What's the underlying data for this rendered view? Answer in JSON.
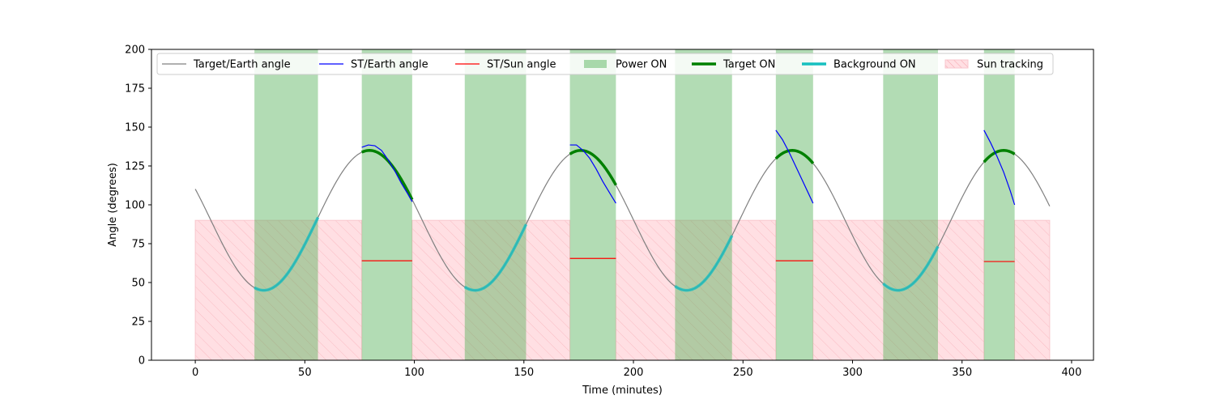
{
  "chart_data": {
    "type": "line",
    "xlabel": "Time (minutes)",
    "ylabel": "Angle (degrees)",
    "xlim": [
      -20,
      410
    ],
    "ylim": [
      0,
      200
    ],
    "xticks": [
      0,
      50,
      100,
      150,
      200,
      250,
      300,
      350,
      400
    ],
    "yticks": [
      0,
      25,
      50,
      75,
      100,
      125,
      150,
      175,
      200
    ],
    "grid": false,
    "legend_placement": "top, single row",
    "legend": [
      {
        "label": "Target/Earth angle",
        "kind": "line",
        "color": "#808080"
      },
      {
        "label": "ST/Earth angle",
        "kind": "line",
        "color": "#0000ff"
      },
      {
        "label": "ST/Sun angle",
        "kind": "line",
        "color": "#ff0000"
      },
      {
        "label": "Power ON",
        "kind": "patch",
        "color": "#4caf50"
      },
      {
        "label": "Target ON",
        "kind": "thick-line",
        "color": "#008000"
      },
      {
        "label": "Background ON",
        "kind": "thick-line",
        "color": "#17bfbf"
      },
      {
        "label": "Sun tracking",
        "kind": "hatch",
        "color": "#ffb6c1"
      }
    ],
    "target_earth_angle": {
      "period_minutes": 96.5,
      "mean_deg": 90,
      "amplitude_deg": 45,
      "peak_times": [
        79.5,
        176,
        272.5,
        369
      ],
      "x_range": [
        0,
        390
      ]
    },
    "power_on_intervals": [
      [
        27,
        56
      ],
      [
        76,
        99
      ],
      [
        123,
        151
      ],
      [
        171,
        192
      ],
      [
        219,
        245
      ],
      [
        265,
        282
      ],
      [
        314,
        339
      ],
      [
        360,
        374
      ]
    ],
    "sun_tracking_intervals": [
      [
        0,
        76
      ],
      [
        99,
        171
      ],
      [
        192,
        265
      ],
      [
        282,
        360
      ],
      [
        374,
        390
      ]
    ],
    "sun_tracking_level": 90,
    "target_on_intervals": [
      [
        76,
        99
      ],
      [
        171,
        192
      ],
      [
        265,
        282
      ],
      [
        360,
        374
      ]
    ],
    "background_on_intervals": [
      [
        27,
        56
      ],
      [
        123,
        151
      ],
      [
        219,
        245
      ],
      [
        314,
        339
      ]
    ],
    "st_earth_angle": [
      {
        "x": [
          76,
          79,
          82,
          85,
          88,
          91,
          94,
          97,
          99
        ],
        "y": [
          137,
          138.5,
          138,
          135,
          129,
          122,
          114,
          107,
          102
        ]
      },
      {
        "x": [
          171,
          174,
          177,
          180,
          183,
          186,
          189,
          192
        ],
        "y": [
          138.5,
          138.5,
          135,
          130,
          123,
          115,
          108,
          101
        ]
      },
      {
        "x": [
          265,
          268,
          271,
          274,
          277,
          280,
          282
        ],
        "y": [
          148,
          142,
          134,
          125,
          116,
          107,
          101
        ]
      },
      {
        "x": [
          360,
          363,
          366,
          369,
          372,
          374
        ],
        "y": [
          148,
          140,
          131,
          121,
          109,
          100
        ]
      }
    ],
    "st_sun_angle": [
      {
        "x": [
          76,
          99
        ],
        "y": [
          64,
          64
        ]
      },
      {
        "x": [
          171,
          192
        ],
        "y": [
          65.5,
          65.5
        ]
      },
      {
        "x": [
          265,
          282
        ],
        "y": [
          64,
          64
        ]
      },
      {
        "x": [
          360,
          374
        ],
        "y": [
          63.5,
          63.5
        ]
      }
    ]
  }
}
